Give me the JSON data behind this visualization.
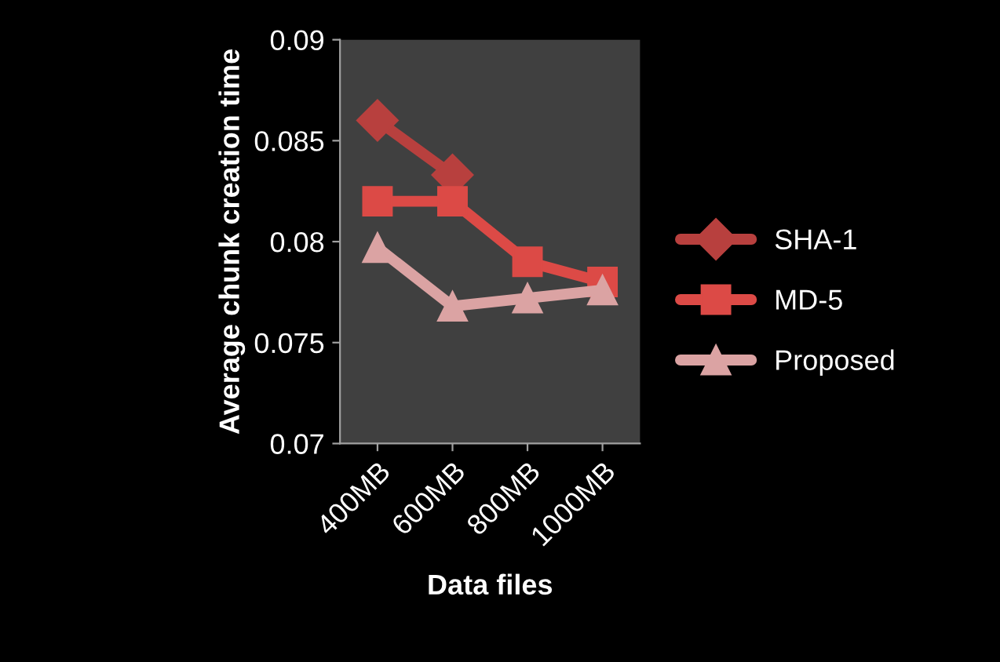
{
  "chart_data": {
    "type": "line",
    "xlabel": "Data files",
    "ylabel": "Average chunk creation time",
    "categories": [
      "400MB",
      "600MB",
      "800MB",
      "1000MB"
    ],
    "series": [
      {
        "name": "SHA-1",
        "color": "#b8403e",
        "marker": "diamond",
        "values": [
          0.086,
          0.0833,
          null,
          null
        ]
      },
      {
        "name": "MD-5",
        "color": "#dc4a46",
        "marker": "square",
        "values": [
          0.082,
          0.082,
          0.079,
          0.078
        ]
      },
      {
        "name": "Proposed",
        "color": "#dba3a3",
        "marker": "triangle",
        "values": [
          0.0797,
          0.0768,
          0.0772,
          0.0776
        ]
      }
    ],
    "ylim": [
      0.07,
      0.09
    ],
    "yticks": [
      0.07,
      0.075,
      0.08,
      0.085,
      0.09
    ],
    "grid": false,
    "legend": "right"
  }
}
